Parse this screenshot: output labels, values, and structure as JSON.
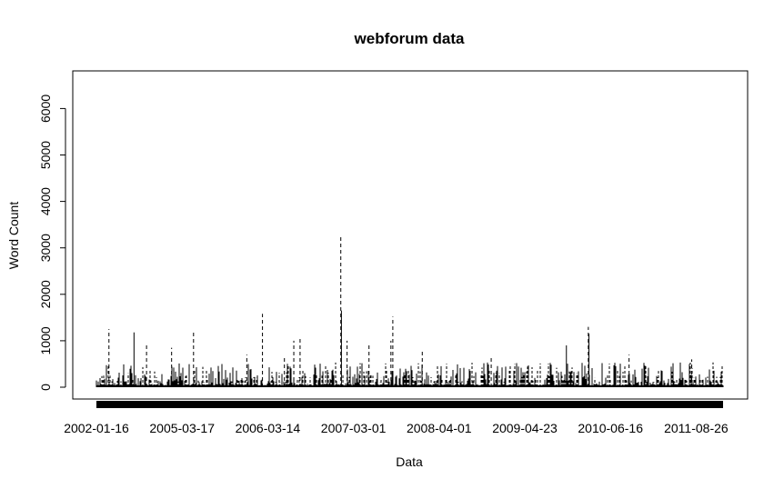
{
  "chart_data": {
    "type": "bar",
    "title": "webforum data",
    "xlabel": "Data",
    "ylabel": "Word Count",
    "ylim": [
      0,
      6500
    ],
    "yticks": [
      0,
      1000,
      2000,
      3000,
      4000,
      5000,
      6000
    ],
    "ytick_labels": [
      "0",
      "1000",
      "2000",
      "3000",
      "4000",
      "5000",
      "6000"
    ],
    "xtick_labels": [
      "2002-01-16",
      "2005-03-17",
      "2006-03-14",
      "2007-03-01",
      "2008-04-01",
      "2009-04-23",
      "2010-06-16",
      "2011-08-26"
    ],
    "baseline_values_range": [
      0,
      350
    ],
    "peaks": [
      {
        "position": 0.02,
        "value": 1250,
        "style": "dashed"
      },
      {
        "position": 0.06,
        "value": 1180,
        "style": "solid"
      },
      {
        "position": 0.08,
        "value": 900,
        "style": "dashed"
      },
      {
        "position": 0.12,
        "value": 850,
        "style": "dashed"
      },
      {
        "position": 0.155,
        "value": 1190,
        "style": "dashed"
      },
      {
        "position": 0.24,
        "value": 700,
        "style": "dashed"
      },
      {
        "position": 0.265,
        "value": 1580,
        "style": "dashed"
      },
      {
        "position": 0.3,
        "value": 650,
        "style": "dashed"
      },
      {
        "position": 0.315,
        "value": 1000,
        "style": "dashed"
      },
      {
        "position": 0.325,
        "value": 1050,
        "style": "dashed"
      },
      {
        "position": 0.39,
        "value": 3230,
        "style": "dashed"
      },
      {
        "position": 0.391,
        "value": 1650,
        "style": "solid"
      },
      {
        "position": 0.4,
        "value": 1000,
        "style": "dashed"
      },
      {
        "position": 0.435,
        "value": 950,
        "style": "dashed"
      },
      {
        "position": 0.47,
        "value": 1000,
        "style": "dashed"
      },
      {
        "position": 0.473,
        "value": 1520,
        "style": "dashed"
      },
      {
        "position": 0.52,
        "value": 780,
        "style": "dashed"
      },
      {
        "position": 0.63,
        "value": 650,
        "style": "dashed"
      },
      {
        "position": 0.75,
        "value": 900,
        "style": "solid"
      },
      {
        "position": 0.785,
        "value": 1300,
        "style": "dashed"
      },
      {
        "position": 0.786,
        "value": 1150,
        "style": "solid"
      },
      {
        "position": 0.85,
        "value": 700,
        "style": "dashed"
      },
      {
        "position": 0.95,
        "value": 600,
        "style": "dashed"
      }
    ]
  }
}
